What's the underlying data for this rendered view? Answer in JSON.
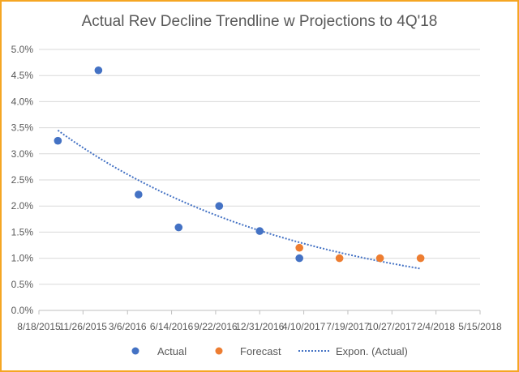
{
  "chart_data": {
    "type": "scatter",
    "title": "Actual Rev Decline Trendline w Projections to 4Q'18",
    "x_tick_labels": [
      "8/18/2015",
      "11/26/2015",
      "3/6/2016",
      "6/14/2016",
      "9/22/2016",
      "12/31/2016",
      "4/10/2017",
      "7/19/2017",
      "10/27/2017",
      "2/4/2018",
      "5/15/2018"
    ],
    "y_tick_labels": [
      "0.0%",
      "0.5%",
      "1.0%",
      "1.5%",
      "2.0%",
      "2.5%",
      "3.0%",
      "3.5%",
      "4.0%",
      "4.5%",
      "5.0%"
    ],
    "xlim": [
      "8/18/2015",
      "5/15/2018"
    ],
    "ylim": [
      0,
      5
    ],
    "grid": "horizontal",
    "legend_position": "bottom",
    "colors": {
      "actual": "#4472c4",
      "forecast": "#ed7d31",
      "trend": "#4472c4",
      "grid": "#d9d9d9",
      "axis": "#bfbfbf",
      "border": "#f5a623"
    },
    "series": [
      {
        "name": "Actual",
        "points": [
          {
            "x": "9/30/2015",
            "y": 3.25
          },
          {
            "x": "12/31/2015",
            "y": 4.6
          },
          {
            "x": "3/31/2016",
            "y": 2.22
          },
          {
            "x": "6/30/2016",
            "y": 1.59
          },
          {
            "x": "9/30/2016",
            "y": 2.0
          },
          {
            "x": "12/31/2016",
            "y": 1.52
          },
          {
            "x": "3/31/2017",
            "y": 1.0
          }
        ]
      },
      {
        "name": "Forecast",
        "points": [
          {
            "x": "3/31/2017",
            "y": 1.2
          },
          {
            "x": "6/30/2017",
            "y": 1.0
          },
          {
            "x": "9/30/2017",
            "y": 1.0
          },
          {
            "x": "12/31/2017",
            "y": 1.0
          }
        ]
      },
      {
        "name": "Expon. (Actual)",
        "style": "dotted",
        "y_start": 3.45,
        "y_end": 0.8,
        "x_start": "9/30/2015",
        "x_end": "12/31/2017"
      }
    ]
  }
}
